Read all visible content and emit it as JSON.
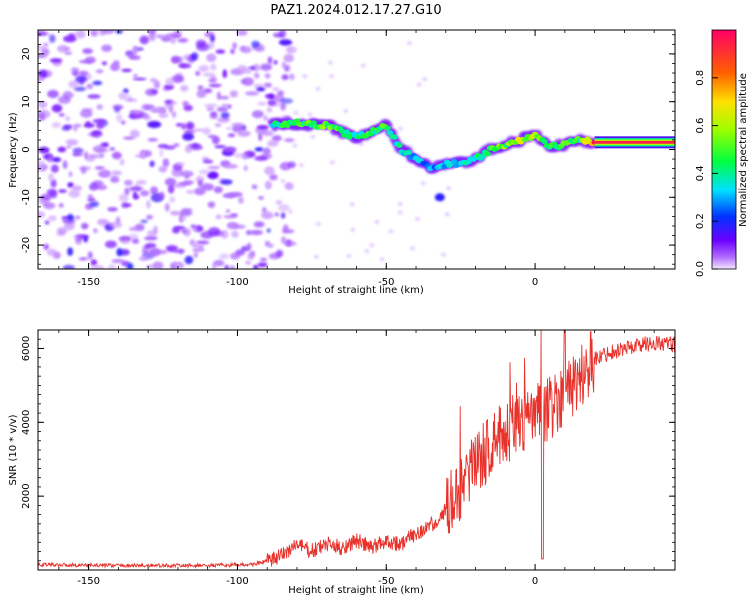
{
  "figure_title": "PAZ1.2024.012.17.27.G10",
  "colors": {
    "snr_line": "#e8312a",
    "spectrogram_ridge": "rainbow",
    "background_scatter": "#9a4dff"
  },
  "chart_data": [
    {
      "type": "heatmap",
      "xlabel": "Height of straight line (km)",
      "ylabel": "Frequency (Hz)",
      "xlim": [
        -167,
        47
      ],
      "ylim": [
        -25,
        25
      ],
      "xticks": [
        -150,
        -100,
        -50,
        0
      ],
      "yticks": [
        20,
        10,
        0,
        -10,
        -20
      ],
      "colorbar": {
        "label": "Normalized spectral amplitude",
        "range": [
          0,
          1
        ],
        "ticks": [
          "0.0",
          "0.2",
          "0.4",
          "0.6",
          "0.8"
        ],
        "colormap": "gist_rainbow"
      },
      "ridge_frequency": {
        "x": [
          -88,
          -80,
          -70,
          -60,
          -50,
          -45,
          -40,
          -35,
          -30,
          -25,
          -20,
          -15,
          -10,
          -5,
          0,
          5,
          10,
          15,
          20,
          30,
          47
        ],
        "y": [
          5.5,
          5.5,
          5,
          2.5,
          5,
          0,
          -2,
          -4,
          -3,
          -3,
          -2,
          0,
          1,
          2,
          3,
          0.5,
          1,
          2,
          1.5,
          1.5,
          1.5
        ],
        "amplitude": [
          0.45,
          0.5,
          0.55,
          0.45,
          0.5,
          0.4,
          0.35,
          0.3,
          0.35,
          0.35,
          0.4,
          0.5,
          0.55,
          0.65,
          0.6,
          0.55,
          0.5,
          0.5,
          0.95,
          0.95,
          0.95
        ]
      }
    },
    {
      "type": "line",
      "xlabel": "Height of straight line (km)",
      "ylabel": "SNR (10 * v/v)",
      "xlim": [
        -167,
        47
      ],
      "ylim": [
        0,
        6500
      ],
      "xticks": [
        -150,
        -100,
        -50,
        0
      ],
      "yticks": [
        2000,
        4000,
        6000
      ],
      "series": [
        {
          "x": [
            -167,
            -150,
            -130,
            -110,
            -95,
            -87,
            -80,
            -75,
            -70,
            -65,
            -60,
            -55,
            -50,
            -45,
            -40,
            -35,
            -30,
            -25,
            -20,
            -15,
            -10,
            -5,
            0,
            5,
            10,
            15,
            20,
            25,
            30,
            35,
            40,
            47
          ],
          "y": [
            150,
            130,
            120,
            120,
            150,
            300,
            700,
            500,
            700,
            600,
            800,
            600,
            800,
            700,
            1000,
            1200,
            1600,
            2200,
            2800,
            3400,
            3700,
            4000,
            4200,
            4400,
            4800,
            5200,
            5700,
            5900,
            6000,
            6100,
            6150,
            6100
          ]
        }
      ]
    }
  ]
}
